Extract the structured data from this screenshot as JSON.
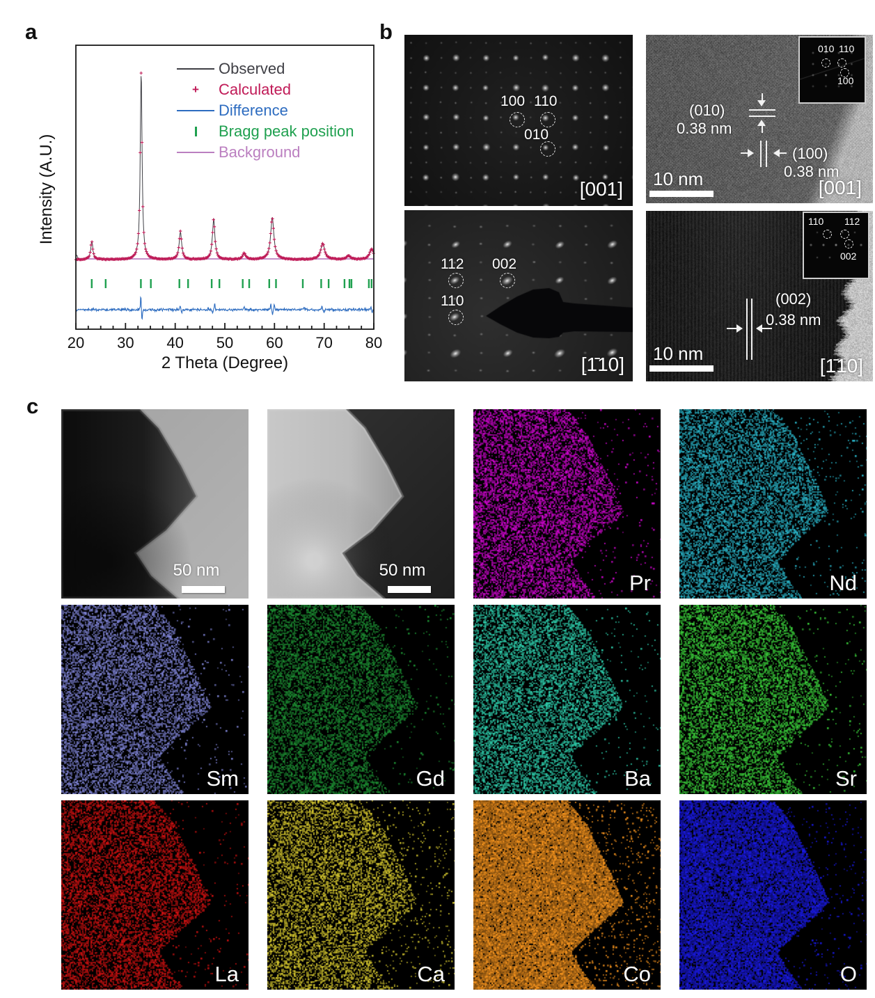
{
  "panel_a": {
    "label": "a",
    "xlabel": "2 Theta (Degree)",
    "ylabel": "Intensity (A.U.)",
    "legend": [
      {
        "label": "Observed",
        "color": "#3f3f45",
        "type": "line"
      },
      {
        "label": "Calculated",
        "color": "#c01a57",
        "type": "plus"
      },
      {
        "label": "Difference",
        "color": "#2d6cc0",
        "type": "line"
      },
      {
        "label": "Bragg peak position",
        "color": "#1fa04f",
        "type": "tick"
      },
      {
        "label": "Background",
        "color": "#bb7fc0",
        "type": "line"
      }
    ]
  },
  "chart_data": {
    "type": "line",
    "title": "",
    "xlabel": "2 Theta (Degree)",
    "ylabel": "Intensity (A.U.)",
    "xlim": [
      20,
      80
    ],
    "x_ticks": [
      20,
      30,
      40,
      50,
      60,
      70,
      80
    ],
    "series": [
      "Observed",
      "Calculated",
      "Difference",
      "Bragg peak position",
      "Background"
    ],
    "peaks": [
      {
        "two_theta": 23.2,
        "rel_intensity": 0.097,
        "width": 0.26
      },
      {
        "two_theta": 33.15,
        "rel_intensity": 1.0,
        "width": 0.22
      },
      {
        "two_theta": 41.05,
        "rel_intensity": 0.15,
        "width": 0.3
      },
      {
        "two_theta": 47.75,
        "rel_intensity": 0.216,
        "width": 0.3
      },
      {
        "two_theta": 53.9,
        "rel_intensity": 0.034,
        "width": 0.35
      },
      {
        "two_theta": 59.55,
        "rel_intensity": 0.224,
        "width": 0.4
      },
      {
        "two_theta": 69.7,
        "rel_intensity": 0.086,
        "width": 0.48
      },
      {
        "two_theta": 74.9,
        "rel_intensity": 0.019,
        "width": 0.5
      },
      {
        "two_theta": 79.55,
        "rel_intensity": 0.056,
        "width": 0.5
      }
    ],
    "bragg_positions": [
      23.2,
      26.0,
      33.1,
      35.1,
      40.85,
      42.6,
      47.35,
      48.9,
      53.6,
      54.9,
      58.95,
      60.3,
      65.7,
      69.4,
      70.9,
      74.1,
      75.1,
      75.5,
      79.0,
      79.55
    ],
    "diff_features": [
      {
        "two_theta": 33.08,
        "amp": 0.097,
        "width": 0.06
      },
      {
        "two_theta": 33.32,
        "amp": -0.06,
        "width": 0.09
      },
      {
        "two_theta": 41.0,
        "amp": 0.026,
        "width": 0.08
      },
      {
        "two_theta": 41.3,
        "amp": -0.019,
        "width": 0.08
      },
      {
        "two_theta": 47.55,
        "amp": -0.022,
        "width": 0.08
      },
      {
        "two_theta": 47.95,
        "amp": 0.034,
        "width": 0.08
      },
      {
        "two_theta": 53.9,
        "amp": 0.015,
        "width": 0.1
      },
      {
        "two_theta": 59.25,
        "amp": 0.034,
        "width": 0.07
      },
      {
        "two_theta": 59.6,
        "amp": -0.034,
        "width": 0.07
      },
      {
        "two_theta": 59.95,
        "amp": 0.037,
        "width": 0.07
      },
      {
        "two_theta": 66.0,
        "amp": 0.011,
        "width": 0.1
      },
      {
        "two_theta": 69.55,
        "amp": 0.022,
        "width": 0.08
      },
      {
        "two_theta": 69.95,
        "amp": -0.019,
        "width": 0.08
      },
      {
        "two_theta": 75.0,
        "amp": 0.011,
        "width": 0.1
      },
      {
        "two_theta": 79.4,
        "amp": 0.019,
        "width": 0.08
      },
      {
        "two_theta": 79.7,
        "amp": -0.015,
        "width": 0.08
      }
    ],
    "legend_position": "upper right",
    "grid": false
  },
  "panel_b": {
    "label": "b",
    "saed_001": {
      "zone": "[001]",
      "spot1": "100",
      "spot2": "110",
      "spot3": "010"
    },
    "saed_110": {
      "zone": "[1̄10]",
      "spot1": "112",
      "spot2": "002",
      "spot3": "110"
    },
    "hrtem_001": {
      "zone": "[001]",
      "scalebar": "10 nm",
      "plane1": "(010)",
      "d1": "0.38 nm",
      "plane2": "(100)",
      "d2": "0.38 nm",
      "fft1": "010",
      "fft2": "110",
      "fft3": "100"
    },
    "hrtem_110": {
      "zone": "[1̄10]",
      "scalebar": "10 nm",
      "plane1": "(002)",
      "d1": "0.38 nm",
      "fft1": "110",
      "fft2": "112",
      "fft3": "002"
    }
  },
  "panel_c": {
    "label": "c",
    "cells": [
      {
        "kind": "bf",
        "scalebar": "50 nm"
      },
      {
        "kind": "df",
        "scalebar": "50 nm"
      },
      {
        "kind": "map",
        "element": "Pr",
        "color": "#cf06cf",
        "density": 0.5,
        "outside": 0.02
      },
      {
        "kind": "map",
        "element": "Nd",
        "color": "#2ab5c9",
        "density": 0.5,
        "outside": 0.025
      },
      {
        "kind": "map",
        "element": "Sm",
        "color": "#8186d9",
        "density": 0.5,
        "outside": 0.02
      },
      {
        "kind": "map",
        "element": "Gd",
        "color": "#1d9033",
        "density": 0.48,
        "outside": 0.018
      },
      {
        "kind": "map",
        "element": "Ba",
        "color": "#2ecfad",
        "density": 0.5,
        "outside": 0.022
      },
      {
        "kind": "map",
        "element": "Sr",
        "color": "#3bd13b",
        "density": 0.5,
        "outside": 0.025
      },
      {
        "kind": "map",
        "element": "La",
        "color": "#d01111",
        "density": 0.5,
        "outside": 0.02
      },
      {
        "kind": "map",
        "element": "Ca",
        "color": "#d8ca2f",
        "density": 0.45,
        "outside": 0.05
      },
      {
        "kind": "map",
        "element": "Co",
        "color": "#f6941e",
        "density": 0.93,
        "outside": 0.07
      },
      {
        "kind": "map",
        "element": "O",
        "color": "#1a1ae6",
        "density": 0.82,
        "outside": 0.03
      }
    ]
  }
}
